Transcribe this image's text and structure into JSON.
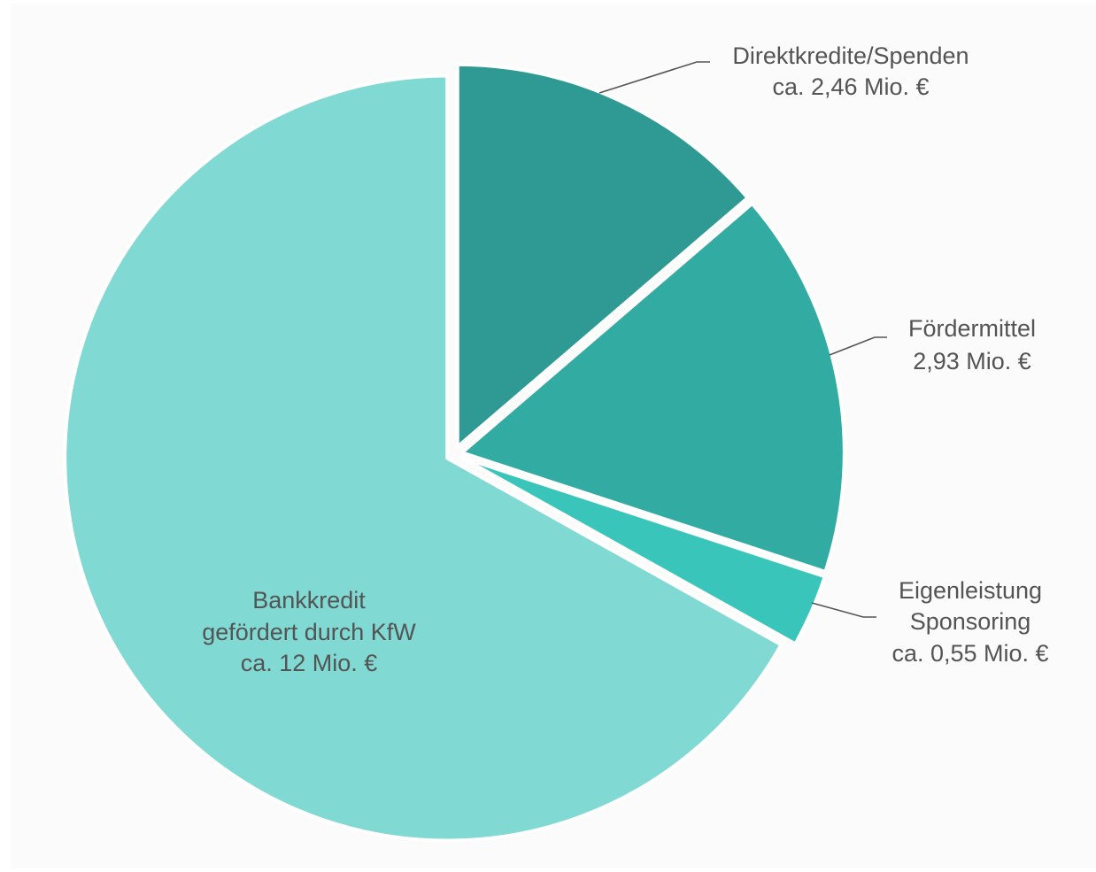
{
  "chart_data": {
    "type": "pie",
    "unit": "Mio. €",
    "slices": [
      {
        "label": "Direktkredite/Spenden",
        "value": 2.46,
        "value_text": "ca. 2,46 Mio. €",
        "color": "#2e9a93"
      },
      {
        "label": "Fördermittel",
        "value": 2.93,
        "value_text": "2,93 Mio. €",
        "color": "#32aba3"
      },
      {
        "label": "Eigenleistung",
        "label_line2": "Sponsoring",
        "value": 0.55,
        "value_text": "ca. 0,55 Mio. €",
        "color": "#3ac5bb"
      },
      {
        "label": "Bankkredit",
        "label_line2": "gefördert durch KfW",
        "value": 12,
        "value_text": "ca. 12 Mio. €",
        "color": "#80d9d2"
      }
    ],
    "start_angle": "12 o'clock",
    "direction": "clockwise",
    "legend": "none",
    "labels": "outside with leader lines, largest slice labelled inside"
  }
}
